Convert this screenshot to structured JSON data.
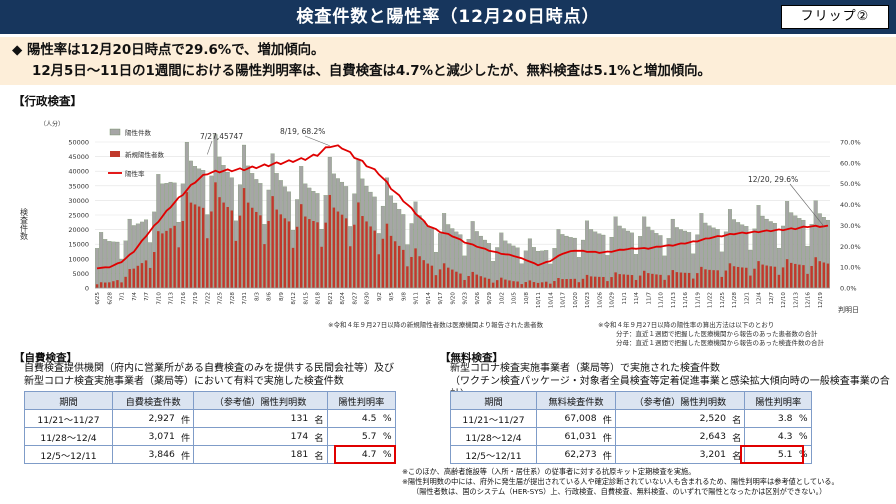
{
  "header": {
    "title": "検査件数と陽性率（12月20日時点）",
    "flip": "フリップ②"
  },
  "summary": {
    "line1": "◆ 陽性率は12月20日時点で29.6%で、増加傾向。",
    "line2": "12月5日～11日の1週間における陽性判明率は、自費検査は4.7%と減少したが、無料検査は5.1%と増加傾向。"
  },
  "section_admin": "【行政検査】",
  "chart_data": {
    "type": "bar",
    "unit_left": "（人分）",
    "ylabel": "検査件数",
    "xlabel": "判明日",
    "ylim": [
      0,
      50000
    ],
    "y2lim": [
      0,
      0.7
    ],
    "yticks": [
      "0",
      "5000",
      "10000",
      "15000",
      "20000",
      "25000",
      "30000",
      "35000",
      "40000",
      "45000",
      "50000"
    ],
    "y2ticks": [
      "0.0%",
      "10.0%",
      "20.0%",
      "30.0%",
      "40.0%",
      "50.0%",
      "60.0%",
      "70.0%"
    ],
    "x_ticks": [
      "6/25",
      "6/28",
      "7/1",
      "7/4",
      "7/7",
      "7/10",
      "7/13",
      "7/16",
      "7/19",
      "7/22",
      "7/25",
      "7/28",
      "7/31",
      "8/3",
      "8/6",
      "8/9",
      "8/12",
      "8/15",
      "8/18",
      "8/21",
      "8/24",
      "8/27",
      "8/30",
      "9/2",
      "9/5",
      "9/8",
      "9/11",
      "9/14",
      "9/17",
      "9/20",
      "9/23",
      "9/26",
      "9/29",
      "10/2",
      "10/5",
      "10/8",
      "10/11",
      "10/14",
      "10/17",
      "10/20",
      "10/23",
      "10/26",
      "10/29",
      "11/1",
      "11/4",
      "11/7",
      "11/10",
      "11/13",
      "11/16",
      "11/19",
      "11/22",
      "11/25",
      "11/28",
      "12/1",
      "12/4",
      "12/7",
      "12/10",
      "12/13",
      "12/16",
      "12/19"
    ],
    "legend": [
      "陽性件数",
      "新規陽性者数",
      "陽性率"
    ],
    "series": [
      {
        "name": "陽性件数",
        "points": [
          [
            0,
            16000
          ],
          [
            3,
            16500
          ],
          [
            6,
            18000
          ],
          [
            9,
            21000
          ],
          [
            12,
            26000
          ],
          [
            15,
            33000
          ],
          [
            18,
            39000
          ],
          [
            21,
            42000
          ],
          [
            24,
            43000
          ],
          [
            27,
            45747
          ],
          [
            30,
            44000
          ],
          [
            33,
            42000
          ],
          [
            36,
            41500
          ],
          [
            39,
            40000
          ],
          [
            42,
            39500
          ],
          [
            45,
            38000
          ],
          [
            48,
            36000
          ],
          [
            51,
            35000
          ],
          [
            54,
            36000
          ],
          [
            57,
            38000
          ],
          [
            60,
            39000
          ],
          [
            63,
            38000
          ],
          [
            66,
            36000
          ],
          [
            69,
            34000
          ],
          [
            72,
            31000
          ],
          [
            75,
            28000
          ],
          [
            78,
            25000
          ],
          [
            81,
            23000
          ],
          [
            84,
            22000
          ],
          [
            87,
            21000
          ],
          [
            90,
            20000
          ],
          [
            93,
            19000
          ],
          [
            96,
            17000
          ],
          [
            99,
            16000
          ],
          [
            102,
            15500
          ],
          [
            105,
            15000
          ],
          [
            108,
            13000
          ],
          [
            111,
            15000
          ],
          [
            114,
            18000
          ],
          [
            117,
            19000
          ],
          [
            120,
            19500
          ],
          [
            123,
            20000
          ],
          [
            126,
            20500
          ],
          [
            129,
            21000
          ],
          [
            132,
            21000
          ],
          [
            135,
            20500
          ],
          [
            138,
            20000
          ],
          [
            141,
            20000
          ],
          [
            144,
            21000
          ],
          [
            147,
            21500
          ],
          [
            150,
            22000
          ],
          [
            153,
            22500
          ],
          [
            156,
            23000
          ],
          [
            159,
            23500
          ],
          [
            162,
            24000
          ],
          [
            165,
            24500
          ],
          [
            168,
            25000
          ],
          [
            171,
            25500
          ],
          [
            174,
            26000
          ],
          [
            177,
            25000
          ]
        ]
      },
      {
        "name": "新規陽性者数",
        "points": [
          [
            0,
            1500
          ],
          [
            3,
            2000
          ],
          [
            6,
            3500
          ],
          [
            9,
            6500
          ],
          [
            12,
            10500
          ],
          [
            15,
            16500
          ],
          [
            18,
            22000
          ],
          [
            21,
            27000
          ],
          [
            24,
            29500
          ],
          [
            27,
            31000
          ],
          [
            30,
            30500
          ],
          [
            33,
            29500
          ],
          [
            36,
            29000
          ],
          [
            39,
            28000
          ],
          [
            42,
            27000
          ],
          [
            45,
            26000
          ],
          [
            48,
            25000
          ],
          [
            51,
            24000
          ],
          [
            54,
            25000
          ],
          [
            57,
            27000
          ],
          [
            60,
            27000
          ],
          [
            63,
            25500
          ],
          [
            66,
            23500
          ],
          [
            69,
            21000
          ],
          [
            72,
            17500
          ],
          [
            75,
            14500
          ],
          [
            78,
            11500
          ],
          [
            81,
            9000
          ],
          [
            84,
            7500
          ],
          [
            87,
            6500
          ],
          [
            90,
            5000
          ],
          [
            93,
            4500
          ],
          [
            96,
            3500
          ],
          [
            99,
            3000
          ],
          [
            102,
            2500
          ],
          [
            105,
            2400
          ],
          [
            108,
            1800
          ],
          [
            111,
            2700
          ],
          [
            114,
            3000
          ],
          [
            117,
            3500
          ],
          [
            120,
            3800
          ],
          [
            123,
            4100
          ],
          [
            126,
            4400
          ],
          [
            129,
            4800
          ],
          [
            132,
            5000
          ],
          [
            135,
            5000
          ],
          [
            138,
            5000
          ],
          [
            141,
            5200
          ],
          [
            144,
            5600
          ],
          [
            147,
            6000
          ],
          [
            150,
            6400
          ],
          [
            153,
            6900
          ],
          [
            156,
            7300
          ],
          [
            159,
            7700
          ],
          [
            162,
            7800
          ],
          [
            165,
            8000
          ],
          [
            168,
            8300
          ],
          [
            171,
            8500
          ],
          [
            174,
            8800
          ],
          [
            177,
            9000
          ]
        ]
      },
      {
        "name": "陽性率",
        "points": [
          [
            0,
            0.095
          ],
          [
            3,
            0.1
          ],
          [
            6,
            0.125
          ],
          [
            9,
            0.175
          ],
          [
            12,
            0.25
          ],
          [
            15,
            0.32
          ],
          [
            18,
            0.39
          ],
          [
            21,
            0.45
          ],
          [
            24,
            0.51
          ],
          [
            27,
            0.55
          ],
          [
            30,
            0.56
          ],
          [
            33,
            0.565
          ],
          [
            36,
            0.57
          ],
          [
            39,
            0.58
          ],
          [
            42,
            0.59
          ],
          [
            45,
            0.6
          ],
          [
            48,
            0.61
          ],
          [
            51,
            0.62
          ],
          [
            54,
            0.64
          ],
          [
            57,
            0.682
          ],
          [
            60,
            0.675
          ],
          [
            63,
            0.63
          ],
          [
            66,
            0.59
          ],
          [
            69,
            0.55
          ],
          [
            72,
            0.48
          ],
          [
            75,
            0.42
          ],
          [
            78,
            0.36
          ],
          [
            81,
            0.3
          ],
          [
            84,
            0.27
          ],
          [
            87,
            0.25
          ],
          [
            90,
            0.22
          ],
          [
            93,
            0.2
          ],
          [
            96,
            0.18
          ],
          [
            99,
            0.165
          ],
          [
            102,
            0.155
          ],
          [
            105,
            0.135
          ],
          [
            108,
            0.11
          ],
          [
            111,
            0.13
          ],
          [
            114,
            0.165
          ],
          [
            117,
            0.18
          ],
          [
            120,
            0.175
          ],
          [
            123,
            0.17
          ],
          [
            126,
            0.175
          ],
          [
            129,
            0.185
          ],
          [
            132,
            0.19
          ],
          [
            135,
            0.19
          ],
          [
            138,
            0.2
          ],
          [
            141,
            0.205
          ],
          [
            144,
            0.215
          ],
          [
            147,
            0.225
          ],
          [
            150,
            0.24
          ],
          [
            153,
            0.25
          ],
          [
            156,
            0.26
          ],
          [
            159,
            0.265
          ],
          [
            162,
            0.27
          ],
          [
            165,
            0.275
          ],
          [
            168,
            0.28
          ],
          [
            171,
            0.285
          ],
          [
            174,
            0.295
          ],
          [
            177,
            0.296
          ]
        ]
      }
    ],
    "annotations": [
      "7/27,45747",
      "8/19, 68.2%",
      "12/20, 29.6%"
    ]
  },
  "notes": {
    "left": "※令和４年９月27日以降の新規陽性者数は医療機関より報告された患者数",
    "right1": "※令和４年９月27日以降の陽性率の算出方法は以下のとおり",
    "right2": "分子：直近１週間で把握した医療機関から報告のあった患者数の合計",
    "right3": "分母：直近１週間で把握した医療機関から報告のあった検査件数の合計"
  },
  "self": {
    "title": "【自費検査】",
    "desc1": "自費検査提供機関（府内に営業所がある自費検査のみを提供する民間会社等）及び",
    "desc2": "新型コロナ検査実施事業者（薬局等）において有料で実施した検査件数",
    "headers": [
      "期間",
      "自費検査件数",
      "（参考値）陽性判明数",
      "陽性判明率"
    ],
    "rows": [
      {
        "period": "11/21～11/27",
        "count": "2,927",
        "cu": "件",
        "pos": "131",
        "pu": "名",
        "rate": "4.5",
        "ru": "%"
      },
      {
        "period": "11/28～12/4",
        "count": "3,071",
        "cu": "件",
        "pos": "174",
        "pu": "名",
        "rate": "5.7",
        "ru": "%"
      },
      {
        "period": "12/5～12/11",
        "count": "3,846",
        "cu": "件",
        "pos": "181",
        "pu": "名",
        "rate": "4.7",
        "ru": "%"
      }
    ]
  },
  "free": {
    "title": "【無料検査】",
    "desc1": "新型コロナ検査実施事業者（薬局等）で実施された検査件数",
    "desc2": "（ワクチン検査パッケージ・対象者全員検査等定着促進事業と感染拡大傾向時の一般検査事業の合計）",
    "headers": [
      "期間",
      "無料検査件数",
      "（参考値）陽性判明数",
      "陽性判明率"
    ],
    "rows": [
      {
        "period": "11/21～11/27",
        "count": "67,008",
        "cu": "件",
        "pos": "2,520",
        "pu": "名",
        "rate": "3.8",
        "ru": "%"
      },
      {
        "period": "11/28～12/4",
        "count": "61,031",
        "cu": "件",
        "pos": "2,643",
        "pu": "名",
        "rate": "4.3",
        "ru": "%"
      },
      {
        "period": "12/5～12/11",
        "count": "62,273",
        "cu": "件",
        "pos": "3,201",
        "pu": "名",
        "rate": "5.1",
        "ru": "%"
      }
    ]
  },
  "footnotes": {
    "n1": "※このほか、高齢者施設等（入所・居住系）の従事者に対する抗原キット定期検査を実施。",
    "n2": "※陽性判明数の中には、府外に発生届が提出されている人や確定診断されていない人も含まれるため、陽性判明率は参考値としている。",
    "n3": "（陽性者数は、国のシステム（HER-SYS）上、行政検査、自費検査、無料検査、のいずれで陽性となったかは区別ができない。）"
  },
  "colors": {
    "bar": "#a6a6a6",
    "bar_edge": "#6b8e5a",
    "pos": "#c0392b",
    "rate": "#e00000",
    "title_bg": "#17365d",
    "summary_bg": "#fdeed9"
  }
}
